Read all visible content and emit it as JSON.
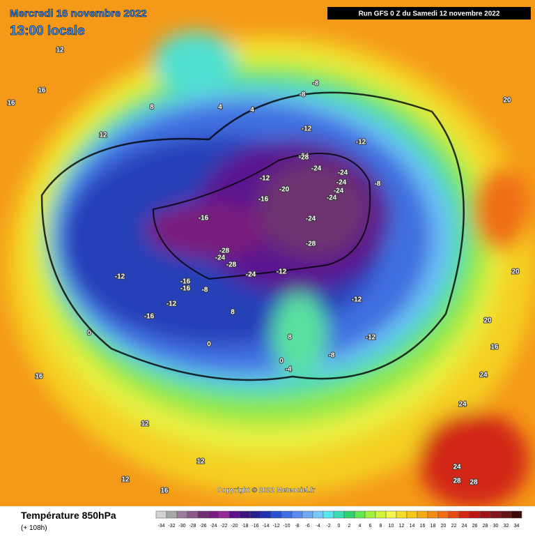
{
  "header": {
    "date": "Mercredi 16 novembre 2022",
    "time": "13:00 locale",
    "run": "Run GFS 0 Z du Samedi 12 novembre 2022"
  },
  "copyright": "Copyright © 2022 Meteociel.fr",
  "legend": {
    "title": "Température 850hPa",
    "lead": "(+ 108h)",
    "ticks": [
      -34,
      -32,
      -30,
      -28,
      -26,
      -24,
      -22,
      -20,
      -18,
      -16,
      -14,
      -12,
      -10,
      -8,
      -6,
      -4,
      -2,
      0,
      2,
      4,
      6,
      8,
      10,
      12,
      14,
      16,
      18,
      20,
      22,
      24,
      26,
      28,
      30,
      32,
      34
    ],
    "colors": [
      "#d2d2d2",
      "#a8a8a8",
      "#9c7c9c",
      "#8a5a8a",
      "#6e3070",
      "#7a1a7e",
      "#96289a",
      "#5c0e8c",
      "#3c147c",
      "#28208c",
      "#1e32b4",
      "#2850d2",
      "#3c6ee6",
      "#5a8cf0",
      "#6eaaf5",
      "#78c8fa",
      "#5ae6f0",
      "#3cdcb4",
      "#32d26e",
      "#64e650",
      "#a0f03c",
      "#d2f53c",
      "#f5f550",
      "#f5dc28",
      "#f5c814",
      "#f5aa14",
      "#f58c14",
      "#f06e14",
      "#e64b14",
      "#d22814",
      "#be1414",
      "#a0141e",
      "#82141e",
      "#641414",
      "#3c0a0a"
    ]
  },
  "map": {
    "labels": [
      -24,
      -28,
      -24,
      -24,
      -24,
      -24,
      -20,
      -24,
      -24,
      -28,
      -28,
      -24,
      -28,
      -24,
      -16,
      -16,
      -12,
      -12,
      -12,
      -12,
      -8,
      -8,
      -8,
      -12,
      -12,
      -12,
      -16,
      -16,
      -16,
      -12,
      -8,
      -8,
      -4,
      0,
      0,
      0,
      4,
      4,
      8,
      8,
      8,
      12,
      12,
      12,
      12,
      12,
      16,
      16,
      16,
      16,
      16,
      20,
      20,
      20,
      24,
      24,
      24,
      28,
      28
    ]
  }
}
